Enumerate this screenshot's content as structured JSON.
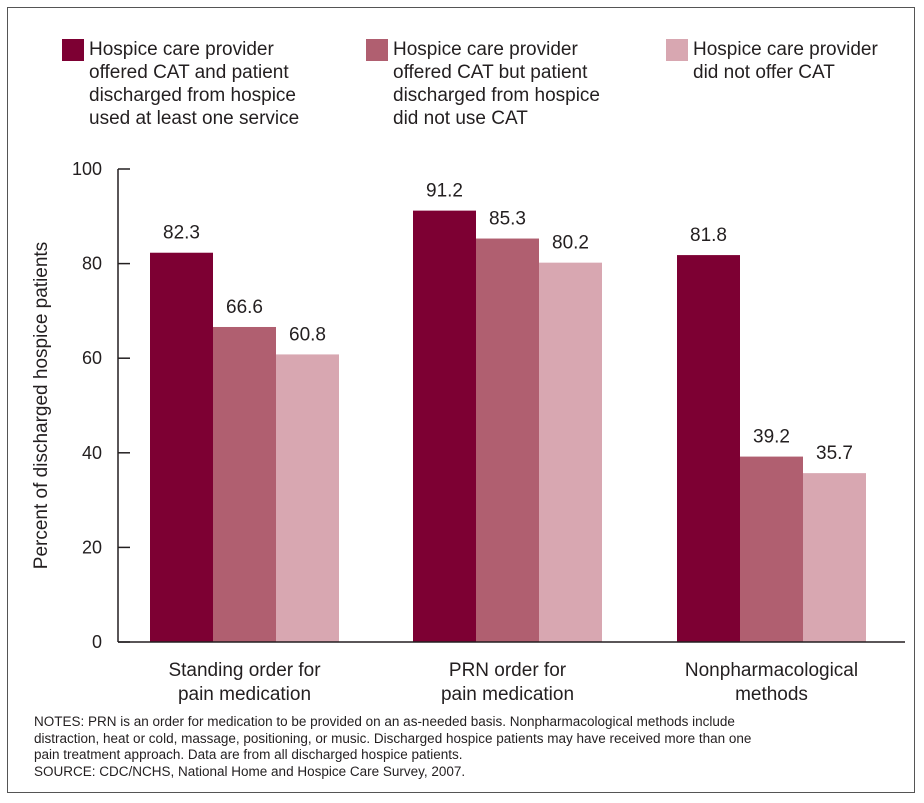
{
  "chart_data": {
    "type": "bar",
    "title": "",
    "xlabel": "",
    "ylabel": "Percent of discharged hospice patients",
    "ylim": [
      0,
      100
    ],
    "yticks": [
      0,
      20,
      40,
      60,
      80,
      100
    ],
    "categories": [
      [
        "Standing order for",
        "pain medication"
      ],
      [
        "PRN order for",
        "pain medication"
      ],
      [
        "Nonpharmacological",
        "methods"
      ]
    ],
    "series": [
      {
        "name": "Hospice care provider offered CAT and patient discharged from hospice used at least one service",
        "name_lines": [
          "Hospice care provider",
          "offered CAT and patient",
          "discharged from hospice",
          "used at least one service"
        ],
        "color": "#7d0033",
        "values": [
          82.3,
          91.2,
          81.8
        ],
        "labels": [
          "82.3",
          "91.2",
          "81.8"
        ]
      },
      {
        "name": "Hospice care provider offered CAT but patient discharged from hospice did not use CAT",
        "name_lines": [
          "Hospice care provider",
          "offered CAT but patient",
          "discharged from hospice",
          "did not use CAT"
        ],
        "color": "#b05f70",
        "values": [
          66.6,
          85.3,
          39.2
        ],
        "labels": [
          "66.6",
          "85.3",
          "39.2"
        ]
      },
      {
        "name": "Hospice care provider did not offer CAT",
        "name_lines": [
          "Hospice care provider",
          "did not offer CAT"
        ],
        "color": "#d8a7b1",
        "values": [
          60.8,
          80.2,
          35.7
        ],
        "labels": [
          "60.8",
          "80.2",
          "35.7"
        ]
      }
    ],
    "legend": "top",
    "grid": false
  },
  "notes": {
    "lines": [
      "NOTES: PRN is an order for medication to be provided on an as-needed basis. Nonpharmacological methods include",
      "distraction, heat or cold, massage, positioning, or music. Discharged hospice patients may have received more than one",
      "pain treatment approach. Data are from all discharged hospice patients.",
      "SOURCE: CDC/NCHS, National Home and Hospice Care Survey, 2007."
    ]
  }
}
